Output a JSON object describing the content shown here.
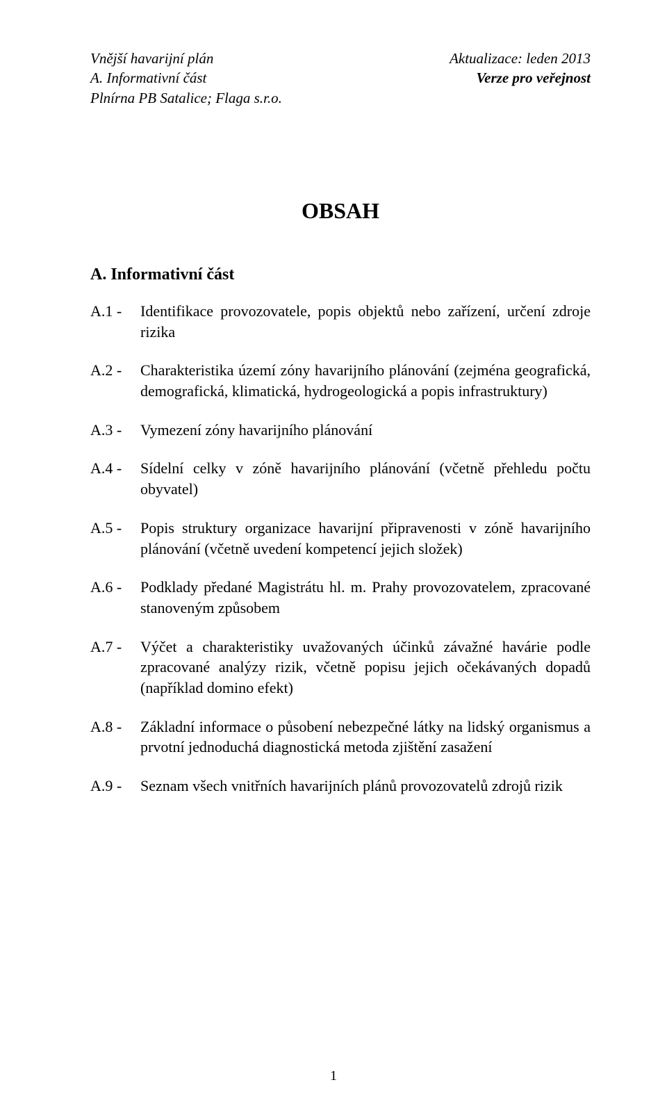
{
  "header": {
    "left_line1": "Vnější havarijní plán",
    "left_line2": "A. Informativní část",
    "left_line3": "Plnírna PB Satalice; Flaga s.r.o.",
    "right_line1": "Aktualizace: leden 2013",
    "right_line2": "Verze pro veřejnost"
  },
  "title": "OBSAH",
  "section_head": "A. Informativní část",
  "toc": [
    {
      "label": "A.1 - ",
      "text": "Identifikace provozovatele, popis objektů nebo zařízení, určení zdroje rizika"
    },
    {
      "label": "A.2 - ",
      "text": "Charakteristika území zóny havarijního plánování (zejména geografická, demografická, klimatická, hydrogeologická a popis infrastruktury)"
    },
    {
      "label": "A.3 - ",
      "text": "Vymezení zóny havarijního plánování"
    },
    {
      "label": "A.4 - ",
      "text": "Sídelní celky v zóně havarijního plánování (včetně přehledu počtu obyvatel)"
    },
    {
      "label": "A.5 - ",
      "text": "Popis struktury organizace havarijní připravenosti v zóně havarijního plánování (včetně uvedení kompetencí jejich složek)"
    },
    {
      "label": "A.6 - ",
      "text": "Podklady předané Magistrátu hl. m. Prahy provozovatelem, zpracované stanoveným způsobem"
    },
    {
      "label": "A.7 - ",
      "text": "Výčet a charakteristiky uvažovaných účinků závažné havárie podle zpracované analýzy rizik, včetně popisu jejich očekávaných dopadů (například domino efekt)"
    },
    {
      "label": "A.8 - ",
      "text": "Základní informace o působení nebezpečné látky na lidský organismus a prvotní jednoduchá diagnostická metoda zjištění zasažení"
    },
    {
      "label": "A.9 - ",
      "text": "Seznam všech vnitřních havarijních plánů provozovatelů zdrojů rizik"
    }
  ],
  "page_number": "1"
}
